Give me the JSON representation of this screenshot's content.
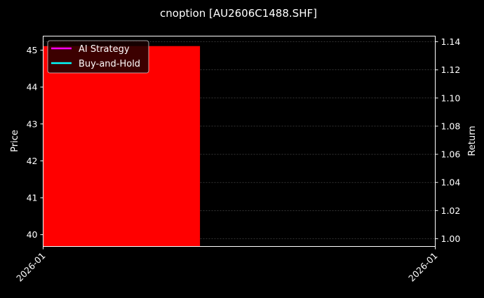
{
  "chart_data": {
    "type": "bar",
    "title": "cnoption [AU2606C1488.SHF]",
    "ylabel": "Price",
    "y2label": "Return",
    "xlabel": "",
    "x_tick_labels": [
      "2026-01",
      "2026-01"
    ],
    "ylim": [
      39.68,
      45.38
    ],
    "y2lim": [
      0.9945,
      1.144
    ],
    "y_ticks": [
      40,
      41,
      42,
      43,
      44,
      45
    ],
    "y2_ticks": [
      "1.00",
      "1.02",
      "1.04",
      "1.06",
      "1.08",
      "1.10",
      "1.12",
      "1.14"
    ],
    "bars": [
      {
        "value": 45.11,
        "color": "#ff0000",
        "x_start_fraction": 0,
        "x_end_fraction": 0.4
      }
    ],
    "series": [
      {
        "name": "AI Strategy",
        "color": "#ff00ff",
        "values": []
      },
      {
        "name": "Buy-and-Hold",
        "color": "#00ffff",
        "values": []
      }
    ],
    "grid": "dotted on right axis ticks",
    "legend": "top-left",
    "background": "#000000"
  }
}
